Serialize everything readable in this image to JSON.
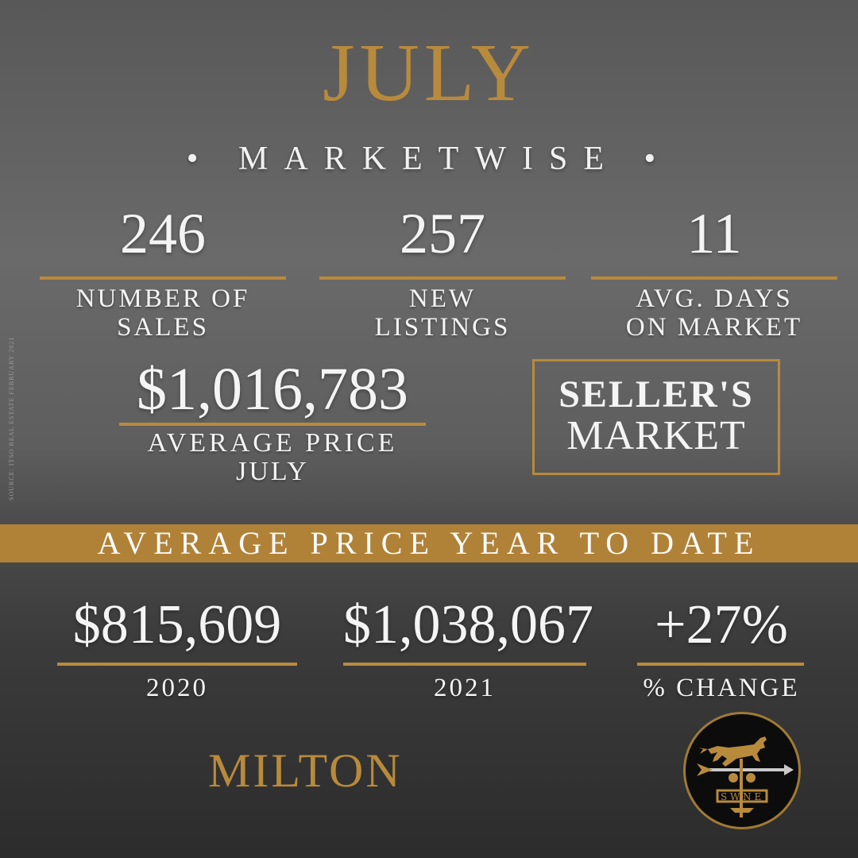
{
  "header": {
    "month": "JULY",
    "subtitle": "• MARKETWISE •"
  },
  "stats": [
    {
      "value": "246",
      "label_line1": "NUMBER OF",
      "label_line2": "SALES"
    },
    {
      "value": "257",
      "label_line1": "NEW",
      "label_line2": "LISTINGS"
    },
    {
      "value": "11",
      "label_line1": "AVG. DAYS",
      "label_line2": "ON MARKET"
    }
  ],
  "average_price": {
    "value": "$1,016,783",
    "label_line1": "AVERAGE PRICE",
    "label_line2": "JULY"
  },
  "market_badge": {
    "line1": "SELLER'S",
    "line2": "MARKET"
  },
  "ytd": {
    "banner": "AVERAGE PRICE YEAR TO DATE",
    "items": [
      {
        "value": "$815,609",
        "label": "2020"
      },
      {
        "value": "$1,038,067",
        "label": "2021"
      },
      {
        "value": "+27%",
        "label": "% CHANGE"
      }
    ]
  },
  "source_note": "SOURCE: ITSO REAL ESTATE FEBRUARY 2021",
  "city": "MILTON",
  "logo": {
    "icon": "horse-weathervane-icon"
  },
  "colors": {
    "accent": "#b88a3c",
    "band": "#b08238",
    "text": "#f4f4f4"
  }
}
